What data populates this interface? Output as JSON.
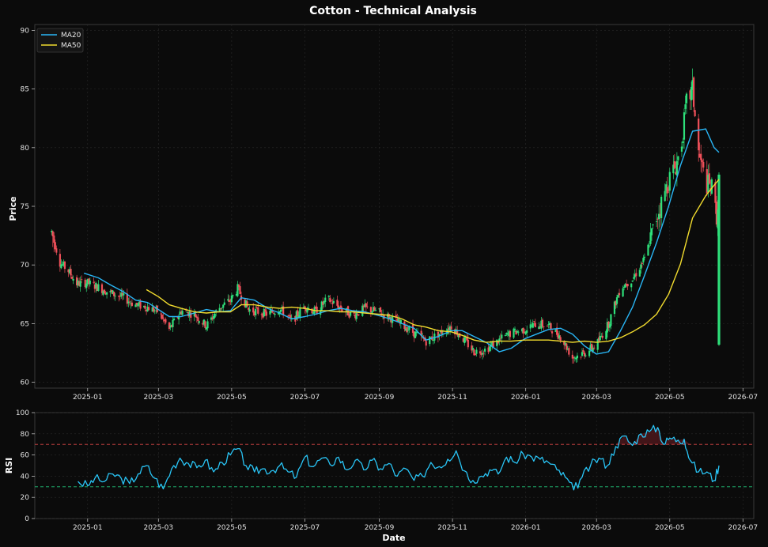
{
  "title": "Cotton - Technical Analysis",
  "colors": {
    "background": "#0b0b0b",
    "up": "#2ee07a",
    "down": "#f0505a",
    "ma20": "#29b6f6",
    "ma50": "#f2dc2e",
    "rsi": "#29c5f6",
    "overbought": "#e04848",
    "oversold": "#22c47a"
  },
  "chart_data": [
    {
      "type": "candlestick",
      "ylabel": "Price",
      "ylim": [
        59.5,
        90.5
      ],
      "xlim": [
        "2024-11-18",
        "2026-07-10"
      ],
      "yticks": [
        "60",
        "65",
        "70",
        "75",
        "80",
        "85",
        "90"
      ],
      "xticks": [
        "2025-01",
        "2025-03",
        "2025-05",
        "2025-07",
        "2025-09",
        "2025-11",
        "2026-01",
        "2026-03",
        "2026-05",
        "2026-07"
      ],
      "grid": true,
      "legend_position": "top-left",
      "series": [
        {
          "name": "MA20",
          "points": [
            [
              "2024-12-29",
              69.3
            ],
            [
              "2025-01-10",
              68.9
            ],
            [
              "2025-01-20",
              68.3
            ],
            [
              "2025-01-31",
              67.7
            ],
            [
              "2025-02-10",
              67.0
            ],
            [
              "2025-02-20",
              66.8
            ],
            [
              "2025-03-01",
              66.2
            ],
            [
              "2025-03-10",
              65.6
            ],
            [
              "2025-03-20",
              65.6
            ],
            [
              "2025-03-31",
              65.9
            ],
            [
              "2025-04-10",
              66.2
            ],
            [
              "2025-04-20",
              66.0
            ],
            [
              "2025-04-30",
              66.1
            ],
            [
              "2025-05-09",
              67.2
            ],
            [
              "2025-05-20",
              67.0
            ],
            [
              "2025-05-31",
              66.3
            ],
            [
              "2025-06-10",
              65.9
            ],
            [
              "2025-06-20",
              65.4
            ],
            [
              "2025-07-01",
              65.6
            ],
            [
              "2025-07-10",
              65.8
            ],
            [
              "2025-07-20",
              66.1
            ],
            [
              "2025-07-31",
              66.3
            ],
            [
              "2025-08-10",
              66.1
            ],
            [
              "2025-08-20",
              66.0
            ],
            [
              "2025-08-31",
              65.7
            ],
            [
              "2025-09-10",
              65.4
            ],
            [
              "2025-09-20",
              65.0
            ],
            [
              "2025-09-30",
              64.6
            ],
            [
              "2025-10-10",
              63.6
            ],
            [
              "2025-10-20",
              63.9
            ],
            [
              "2025-10-31",
              64.4
            ],
            [
              "2025-11-09",
              64.4
            ],
            [
              "2025-11-19",
              63.9
            ],
            [
              "2025-11-29",
              63.4
            ],
            [
              "2025-12-10",
              62.6
            ],
            [
              "2025-12-20",
              62.9
            ],
            [
              "2025-12-31",
              63.7
            ],
            [
              "2026-01-10",
              64.1
            ],
            [
              "2026-01-20",
              64.5
            ],
            [
              "2026-01-30",
              64.6
            ],
            [
              "2026-02-09",
              64.1
            ],
            [
              "2026-02-19",
              63.1
            ],
            [
              "2026-03-01",
              62.4
            ],
            [
              "2026-03-11",
              62.6
            ],
            [
              "2026-03-21",
              64.4
            ],
            [
              "2026-03-31",
              66.4
            ],
            [
              "2026-04-10",
              69.1
            ],
            [
              "2026-04-20",
              71.9
            ],
            [
              "2026-04-30",
              75.0
            ],
            [
              "2026-05-10",
              78.5
            ],
            [
              "2026-05-20",
              81.4
            ],
            [
              "2026-05-31",
              81.6
            ],
            [
              "2026-06-07",
              80.0
            ],
            [
              "2026-06-11",
              79.6
            ]
          ]
        },
        {
          "name": "MA50",
          "points": [
            [
              "2025-02-19",
              67.9
            ],
            [
              "2025-03-01",
              67.3
            ],
            [
              "2025-03-10",
              66.6
            ],
            [
              "2025-03-20",
              66.3
            ],
            [
              "2025-03-31",
              66.0
            ],
            [
              "2025-04-10",
              65.9
            ],
            [
              "2025-04-20",
              66.0
            ],
            [
              "2025-04-30",
              66.0
            ],
            [
              "2025-05-09",
              66.6
            ],
            [
              "2025-05-20",
              66.6
            ],
            [
              "2025-05-31",
              66.4
            ],
            [
              "2025-06-10",
              66.3
            ],
            [
              "2025-06-20",
              66.4
            ],
            [
              "2025-07-01",
              66.3
            ],
            [
              "2025-07-10",
              66.1
            ],
            [
              "2025-07-20",
              66.1
            ],
            [
              "2025-07-31",
              66.0
            ],
            [
              "2025-08-10",
              66.0
            ],
            [
              "2025-08-20",
              65.9
            ],
            [
              "2025-08-31",
              65.8
            ],
            [
              "2025-09-10",
              65.7
            ],
            [
              "2025-09-20",
              65.4
            ],
            [
              "2025-09-30",
              64.9
            ],
            [
              "2025-10-10",
              64.7
            ],
            [
              "2025-10-20",
              64.4
            ],
            [
              "2025-10-31",
              64.3
            ],
            [
              "2025-11-09",
              64.0
            ],
            [
              "2025-11-19",
              63.6
            ],
            [
              "2025-11-29",
              63.4
            ],
            [
              "2025-12-10",
              63.5
            ],
            [
              "2025-12-20",
              63.5
            ],
            [
              "2025-12-31",
              63.6
            ],
            [
              "2026-01-10",
              63.6
            ],
            [
              "2026-01-20",
              63.6
            ],
            [
              "2026-01-30",
              63.5
            ],
            [
              "2026-02-09",
              63.4
            ],
            [
              "2026-02-19",
              63.5
            ],
            [
              "2026-03-01",
              63.4
            ],
            [
              "2026-03-11",
              63.5
            ],
            [
              "2026-03-21",
              63.8
            ],
            [
              "2026-03-31",
              64.3
            ],
            [
              "2026-04-10",
              64.9
            ],
            [
              "2026-04-20",
              65.8
            ],
            [
              "2026-04-30",
              67.5
            ],
            [
              "2026-05-10",
              70.1
            ],
            [
              "2026-05-20",
              74.0
            ],
            [
              "2026-05-31",
              75.9
            ],
            [
              "2026-06-07",
              76.8
            ],
            [
              "2026-06-11",
              77.3
            ]
          ]
        }
      ],
      "price_path": [
        [
          "2024-12-02",
          72.8
        ],
        [
          "2024-12-09",
          70.2
        ],
        [
          "2024-12-16",
          69.5
        ],
        [
          "2024-12-23",
          68.4
        ],
        [
          "2024-12-31",
          68.5
        ],
        [
          "2025-01-10",
          68.1
        ],
        [
          "2025-01-20",
          67.6
        ],
        [
          "2025-01-31",
          67.2
        ],
        [
          "2025-02-10",
          66.6
        ],
        [
          "2025-02-20",
          66.4
        ],
        [
          "2025-03-01",
          66.0
        ],
        [
          "2025-03-10",
          64.5
        ],
        [
          "2025-03-20",
          66.1
        ],
        [
          "2025-03-31",
          65.8
        ],
        [
          "2025-04-10",
          64.8
        ],
        [
          "2025-04-20",
          66.3
        ],
        [
          "2025-04-30",
          67.0
        ],
        [
          "2025-05-06",
          68.0
        ],
        [
          "2025-05-15",
          66.2
        ],
        [
          "2025-05-31",
          65.8
        ],
        [
          "2025-06-10",
          66.3
        ],
        [
          "2025-06-20",
          65.2
        ],
        [
          "2025-07-01",
          66.5
        ],
        [
          "2025-07-10",
          66.0
        ],
        [
          "2025-07-20",
          67.1
        ],
        [
          "2025-07-31",
          66.3
        ],
        [
          "2025-08-10",
          65.7
        ],
        [
          "2025-08-20",
          66.3
        ],
        [
          "2025-08-31",
          66.0
        ],
        [
          "2025-09-10",
          65.5
        ],
        [
          "2025-09-20",
          64.9
        ],
        [
          "2025-09-30",
          64.2
        ],
        [
          "2025-10-10",
          63.5
        ],
        [
          "2025-10-20",
          64.1
        ],
        [
          "2025-10-31",
          64.8
        ],
        [
          "2025-11-09",
          63.8
        ],
        [
          "2025-11-19",
          62.6
        ],
        [
          "2025-11-29",
          62.8
        ],
        [
          "2025-12-10",
          63.6
        ],
        [
          "2025-12-20",
          64.2
        ],
        [
          "2025-12-31",
          64.5
        ],
        [
          "2026-01-10",
          65.0
        ],
        [
          "2026-01-20",
          64.8
        ],
        [
          "2026-01-30",
          63.9
        ],
        [
          "2026-02-09",
          62.1
        ],
        [
          "2026-02-19",
          62.5
        ],
        [
          "2026-03-01",
          63.2
        ],
        [
          "2026-03-11",
          65.0
        ],
        [
          "2026-03-21",
          68.1
        ],
        [
          "2026-03-31",
          68.8
        ],
        [
          "2026-04-10",
          70.5
        ],
        [
          "2026-04-20",
          74.0
        ],
        [
          "2026-04-30",
          77.2
        ],
        [
          "2026-05-06",
          78.5
        ],
        [
          "2026-05-10",
          79.8
        ],
        [
          "2026-05-15",
          83.8
        ],
        [
          "2026-05-20",
          85.0
        ],
        [
          "2026-05-25",
          79.5
        ],
        [
          "2026-05-31",
          77.0
        ],
        [
          "2026-06-05",
          76.5
        ],
        [
          "2026-06-09",
          74.2
        ],
        [
          "2026-06-11",
          76.0
        ]
      ],
      "last_candle": {
        "date": "2026-06-11",
        "open": 63.2,
        "high": 77.9,
        "low": 63.1,
        "close": 77.7
      }
    },
    {
      "type": "line",
      "xlabel": "Date",
      "ylabel": "RSI",
      "ylim": [
        0,
        100
      ],
      "yticks": [
        "0",
        "20",
        "40",
        "60",
        "80",
        "100"
      ],
      "xlim": [
        "2024-11-18",
        "2026-07-10"
      ],
      "xticks": [
        "2025-01",
        "2025-03",
        "2025-05",
        "2025-07",
        "2025-09",
        "2025-11",
        "2026-01",
        "2026-03",
        "2026-05",
        "2026-07"
      ],
      "thresholds": [
        70,
        30
      ],
      "series": [
        {
          "name": "RSI",
          "points": [
            [
              "2024-12-24",
              35
            ],
            [
              "2025-01-01",
              31
            ],
            [
              "2025-01-07",
              38
            ],
            [
              "2025-01-15",
              35
            ],
            [
              "2025-01-22",
              42
            ],
            [
              "2025-01-29",
              38
            ],
            [
              "2025-02-05",
              33
            ],
            [
              "2025-02-12",
              42
            ],
            [
              "2025-02-19",
              50
            ],
            [
              "2025-02-26",
              38
            ],
            [
              "2025-03-05",
              28
            ],
            [
              "2025-03-12",
              47
            ],
            [
              "2025-03-19",
              57
            ],
            [
              "2025-03-26",
              52
            ],
            [
              "2025-04-02",
              48
            ],
            [
              "2025-04-09",
              55
            ],
            [
              "2025-04-16",
              44
            ],
            [
              "2025-04-23",
              53
            ],
            [
              "2025-04-30",
              60
            ],
            [
              "2025-05-06",
              66
            ],
            [
              "2025-05-13",
              50
            ],
            [
              "2025-05-20",
              44
            ],
            [
              "2025-05-27",
              47
            ],
            [
              "2025-06-03",
              45
            ],
            [
              "2025-06-10",
              50
            ],
            [
              "2025-06-17",
              44
            ],
            [
              "2025-06-24",
              39
            ],
            [
              "2025-07-01",
              58
            ],
            [
              "2025-07-08",
              49
            ],
            [
              "2025-07-15",
              57
            ],
            [
              "2025-07-22",
              51
            ],
            [
              "2025-07-29",
              58
            ],
            [
              "2025-08-05",
              46
            ],
            [
              "2025-08-12",
              55
            ],
            [
              "2025-08-19",
              46
            ],
            [
              "2025-08-26",
              55
            ],
            [
              "2025-09-02",
              47
            ],
            [
              "2025-09-09",
              52
            ],
            [
              "2025-09-16",
              40
            ],
            [
              "2025-09-23",
              47
            ],
            [
              "2025-09-30",
              36
            ],
            [
              "2025-10-07",
              40
            ],
            [
              "2025-10-14",
              53
            ],
            [
              "2025-10-21",
              49
            ],
            [
              "2025-10-28",
              56
            ],
            [
              "2025-11-04",
              64
            ],
            [
              "2025-11-11",
              45
            ],
            [
              "2025-11-18",
              36
            ],
            [
              "2025-11-25",
              40
            ],
            [
              "2025-12-02",
              46
            ],
            [
              "2025-12-09",
              42
            ],
            [
              "2025-12-16",
              58
            ],
            [
              "2025-12-23",
              53
            ],
            [
              "2025-12-30",
              61
            ],
            [
              "2026-01-06",
              58
            ],
            [
              "2026-01-13",
              56
            ],
            [
              "2026-01-20",
              53
            ],
            [
              "2026-01-27",
              46
            ],
            [
              "2026-02-03",
              39
            ],
            [
              "2026-02-10",
              27
            ],
            [
              "2026-02-17",
              39
            ],
            [
              "2026-02-24",
              50
            ],
            [
              "2026-03-03",
              57
            ],
            [
              "2026-03-10",
              50
            ],
            [
              "2026-03-17",
              68
            ],
            [
              "2026-03-24",
              78
            ],
            [
              "2026-03-31",
              69
            ],
            [
              "2026-04-07",
              80
            ],
            [
              "2026-04-14",
              82
            ],
            [
              "2026-04-21",
              86
            ],
            [
              "2026-04-26",
              70
            ],
            [
              "2026-05-01",
              76
            ],
            [
              "2026-05-08",
              74
            ],
            [
              "2026-05-13",
              75
            ],
            [
              "2026-05-18",
              55
            ],
            [
              "2026-05-25",
              44
            ],
            [
              "2026-06-01",
              44
            ],
            [
              "2026-06-07",
              36
            ],
            [
              "2026-06-11",
              50
            ]
          ]
        }
      ]
    }
  ],
  "legend": [
    {
      "label": "MA20",
      "color": "#29b6f6"
    },
    {
      "label": "MA50",
      "color": "#f2dc2e"
    }
  ]
}
